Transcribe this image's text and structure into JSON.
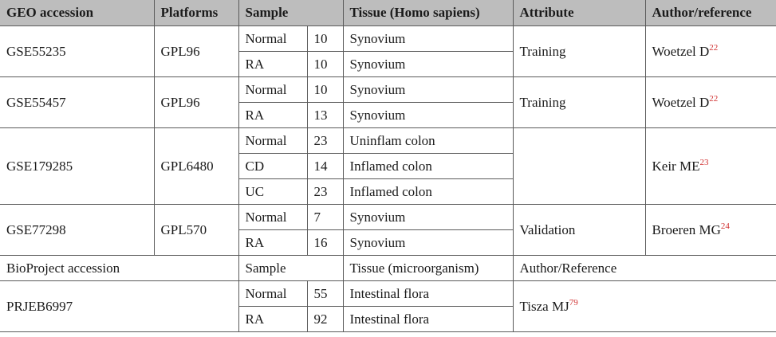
{
  "header": {
    "geo": "GEO accession",
    "platforms": "Platforms",
    "sample": "Sample",
    "tissue": "Tissue (Homo sapiens)",
    "attribute": "Attribute",
    "author": "Author/reference"
  },
  "rows": [
    {
      "geo": "GSE55235",
      "platform": "GPL96",
      "attribute": "Training",
      "author": "Woetzel D",
      "ref": "22",
      "samples": [
        {
          "type": "Normal",
          "n": "10",
          "tissue": "Synovium"
        },
        {
          "type": "RA",
          "n": "10",
          "tissue": "Synovium"
        }
      ]
    },
    {
      "geo": "GSE55457",
      "platform": "GPL96",
      "attribute": "Training",
      "author": "Woetzel D",
      "ref": "22",
      "samples": [
        {
          "type": "Normal",
          "n": "10",
          "tissue": "Synovium"
        },
        {
          "type": "RA",
          "n": "13",
          "tissue": "Synovium"
        }
      ]
    },
    {
      "geo": "GSE179285",
      "platform": "GPL6480",
      "attribute": "",
      "author": "Keir ME",
      "ref": "23",
      "samples": [
        {
          "type": "Normal",
          "n": "23",
          "tissue": "Uninflam colon"
        },
        {
          "type": "CD",
          "n": "14",
          "tissue": "Inflamed colon"
        },
        {
          "type": "UC",
          "n": "23",
          "tissue": "Inflamed colon"
        }
      ]
    },
    {
      "geo": "GSE77298",
      "platform": "GPL570",
      "attribute": "Validation",
      "author": "Broeren MG",
      "ref": "24",
      "samples": [
        {
          "type": "Normal",
          "n": "7",
          "tissue": "Synovium"
        },
        {
          "type": "RA",
          "n": "16",
          "tissue": "Synovium"
        }
      ]
    }
  ],
  "bioproject_header": {
    "accession": "BioProject accession",
    "sample": "Sample",
    "tissue": "Tissue (microorganism)",
    "author": "Author/Reference"
  },
  "bioproject": {
    "accession": "PRJEB6997",
    "author": "Tisza MJ",
    "ref": "79",
    "samples": [
      {
        "type": "Normal",
        "n": "55",
        "tissue": "Intestinal flora"
      },
      {
        "type": "RA",
        "n": "92",
        "tissue": "Intestinal flora"
      }
    ]
  }
}
